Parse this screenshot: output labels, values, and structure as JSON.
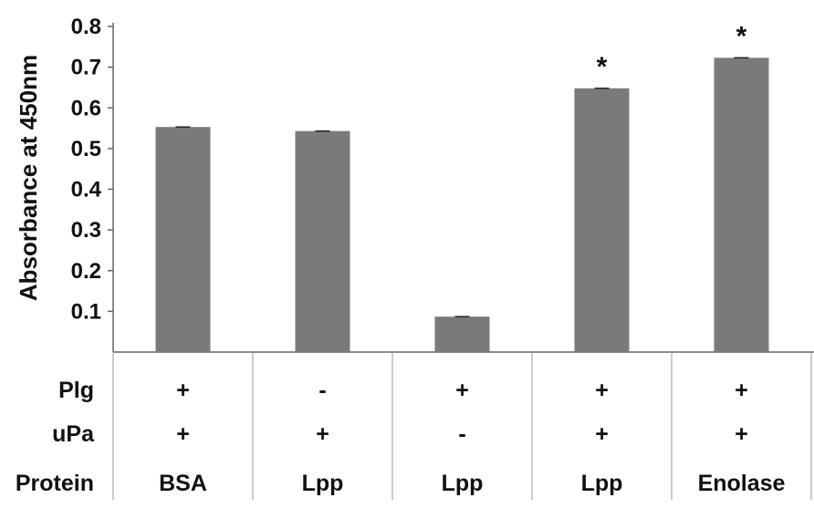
{
  "chart_data": {
    "type": "bar",
    "title": "",
    "ylabel": "Absorbance at 450nm",
    "ylim": [
      0,
      0.8
    ],
    "yticks": [
      0.1,
      0.2,
      0.3,
      0.4,
      0.5,
      0.6,
      0.7,
      0.8
    ],
    "ytick_labels": [
      "0.1",
      "0.2",
      "0.3",
      "0.4",
      "0.5",
      "0.6",
      "0.7",
      "0.8"
    ],
    "categories": [
      "BSA",
      "Lpp",
      "Lpp",
      "Lpp",
      "Enolase"
    ],
    "values": [
      0.553,
      0.543,
      0.087,
      0.648,
      0.723
    ],
    "significance": [
      "",
      "",
      "",
      "*",
      "*"
    ],
    "bar_color": "#7a7a7a",
    "condition_table": {
      "rows": [
        {
          "label": "Plg",
          "values": [
            "+",
            "-",
            "+",
            "+",
            "+"
          ]
        },
        {
          "label": "uPa",
          "values": [
            "+",
            "+",
            "-",
            "+",
            "+"
          ]
        },
        {
          "label": "Protein",
          "values": [
            "BSA",
            "Lpp",
            "Lpp",
            "Lpp",
            "Enolase"
          ]
        }
      ]
    }
  }
}
